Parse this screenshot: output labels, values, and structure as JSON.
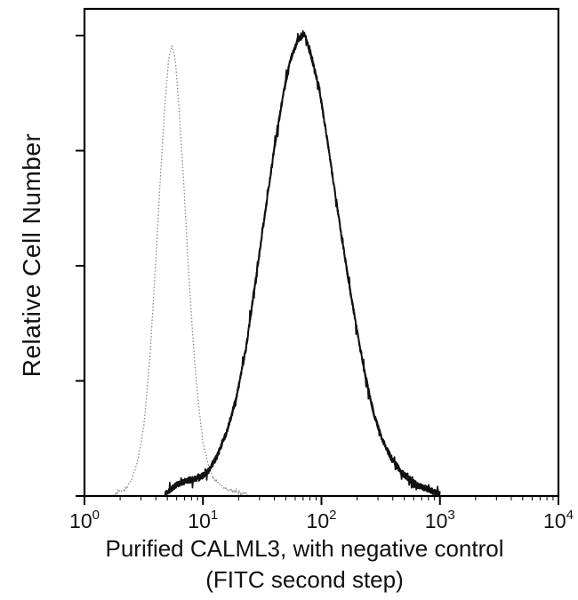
{
  "chart_data": {
    "type": "line",
    "subtype": "flow-cytometry-histogram",
    "title": "",
    "ylabel": "Relative Cell Number",
    "xlabel": "Purified CALML3, with negative control",
    "xlabel_line2": "(FITC second step)",
    "x_scale": "log10",
    "x_range_exponents": [
      0,
      4
    ],
    "x_ticks": [
      {
        "base": "10",
        "exp": "0"
      },
      {
        "base": "10",
        "exp": "1"
      },
      {
        "base": "10",
        "exp": "2"
      },
      {
        "base": "10",
        "exp": "3"
      },
      {
        "base": "10",
        "exp": "4"
      }
    ],
    "y_axis": {
      "tick_count": 5,
      "labels_shown": false,
      "ylim": [
        0,
        1
      ]
    },
    "grid": false,
    "legend": "none",
    "series": [
      {
        "name": "negative control (FITC second step)",
        "style": "dotted",
        "color": "#8f8f8f",
        "points": [
          [
            0.26,
            0.0
          ],
          [
            0.34,
            0.01
          ],
          [
            0.4,
            0.03
          ],
          [
            0.45,
            0.07
          ],
          [
            0.5,
            0.14
          ],
          [
            0.55,
            0.28
          ],
          [
            0.6,
            0.48
          ],
          [
            0.64,
            0.66
          ],
          [
            0.68,
            0.82
          ],
          [
            0.71,
            0.91
          ],
          [
            0.74,
            0.94
          ],
          [
            0.77,
            0.9
          ],
          [
            0.8,
            0.8
          ],
          [
            0.84,
            0.64
          ],
          [
            0.88,
            0.46
          ],
          [
            0.92,
            0.31
          ],
          [
            0.96,
            0.19
          ],
          [
            1.0,
            0.11
          ],
          [
            1.05,
            0.055
          ],
          [
            1.1,
            0.03
          ],
          [
            1.18,
            0.013
          ],
          [
            1.28,
            0.005
          ],
          [
            1.38,
            0.0
          ]
        ]
      },
      {
        "name": "Purified CALML3",
        "style": "solid-noisy",
        "color": "#111111",
        "points": [
          [
            0.68,
            0.0
          ],
          [
            0.75,
            0.015
          ],
          [
            0.82,
            0.025
          ],
          [
            0.9,
            0.03
          ],
          [
            0.98,
            0.035
          ],
          [
            1.05,
            0.05
          ],
          [
            1.12,
            0.08
          ],
          [
            1.2,
            0.13
          ],
          [
            1.28,
            0.2
          ],
          [
            1.36,
            0.3
          ],
          [
            1.44,
            0.44
          ],
          [
            1.52,
            0.58
          ],
          [
            1.6,
            0.72
          ],
          [
            1.68,
            0.84
          ],
          [
            1.74,
            0.91
          ],
          [
            1.8,
            0.95
          ],
          [
            1.86,
            0.96
          ],
          [
            1.92,
            0.91
          ],
          [
            1.98,
            0.85
          ],
          [
            2.05,
            0.74
          ],
          [
            2.12,
            0.62
          ],
          [
            2.2,
            0.49
          ],
          [
            2.28,
            0.37
          ],
          [
            2.36,
            0.26
          ],
          [
            2.44,
            0.17
          ],
          [
            2.52,
            0.11
          ],
          [
            2.6,
            0.07
          ],
          [
            2.7,
            0.04
          ],
          [
            2.8,
            0.02
          ],
          [
            2.9,
            0.01
          ],
          [
            3.0,
            0.0
          ]
        ]
      }
    ],
    "frame_color": "#000000"
  }
}
